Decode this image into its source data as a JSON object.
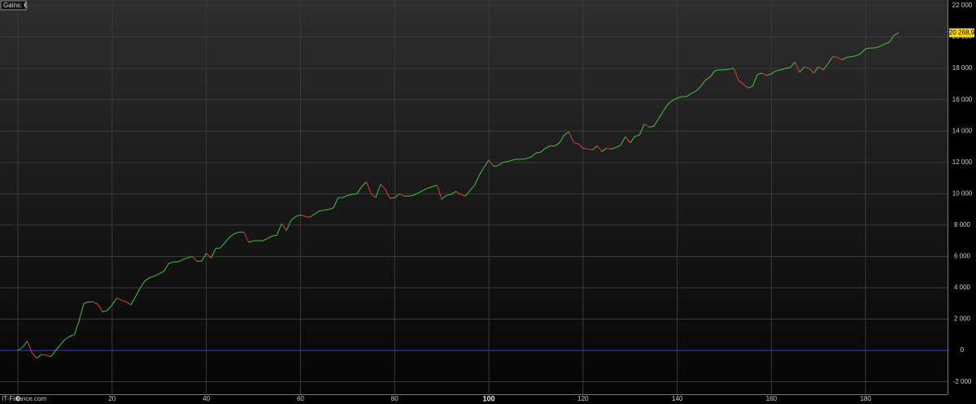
{
  "chart_data": {
    "type": "line",
    "title": "Gains: €",
    "footer": "IT-Finance.com",
    "x": [
      0,
      1,
      2,
      3,
      4,
      5,
      6,
      7,
      8,
      9,
      10,
      11,
      12,
      13,
      14,
      15,
      16,
      17,
      18,
      19,
      20,
      21,
      22,
      23,
      24,
      25,
      26,
      27,
      28,
      29,
      30,
      31,
      32,
      33,
      34,
      35,
      36,
      37,
      38,
      39,
      40,
      41,
      42,
      43,
      44,
      45,
      46,
      47,
      48,
      49,
      50,
      51,
      52,
      53,
      54,
      55,
      56,
      57,
      58,
      59,
      60,
      61,
      62,
      63,
      64,
      65,
      66,
      67,
      68,
      69,
      70,
      71,
      72,
      73,
      74,
      75,
      76,
      77,
      78,
      79,
      80,
      81,
      82,
      83,
      84,
      85,
      86,
      87,
      88,
      89,
      90,
      91,
      92,
      93,
      94,
      95,
      96,
      97,
      98,
      99,
      100,
      101,
      102,
      103,
      104,
      105,
      106,
      107,
      108,
      109,
      110,
      111,
      112,
      113,
      114,
      115,
      116,
      117,
      118,
      119,
      120,
      121,
      122,
      123,
      124,
      125,
      126,
      127,
      128,
      129,
      130,
      131,
      132,
      133,
      134,
      135,
      136,
      137,
      138,
      139,
      140,
      141,
      142,
      143,
      144,
      145,
      146,
      147,
      148,
      149,
      150,
      151,
      152,
      153,
      154,
      155,
      156,
      157,
      158,
      159,
      160,
      161,
      162,
      163,
      164,
      165,
      166,
      167,
      168,
      169,
      170,
      171,
      172,
      173,
      174,
      175,
      176,
      177,
      178,
      179,
      180,
      181,
      182,
      183,
      184,
      185,
      186,
      187
    ],
    "values": [
      0,
      200,
      600,
      -150,
      -500,
      -250,
      -300,
      -400,
      0,
      350,
      700,
      900,
      1000,
      1900,
      3000,
      3100,
      3100,
      2950,
      2450,
      2550,
      2900,
      3350,
      3200,
      3100,
      2900,
      3450,
      4000,
      4450,
      4650,
      4750,
      4900,
      5050,
      5550,
      5650,
      5650,
      5800,
      5900,
      6000,
      5700,
      5700,
      6200,
      5900,
      6500,
      6550,
      6900,
      7250,
      7450,
      7550,
      7550,
      6900,
      7000,
      7000,
      7000,
      7150,
      7300,
      7350,
      8100,
      7650,
      8300,
      8550,
      8650,
      8550,
      8500,
      8700,
      8900,
      8950,
      9000,
      9100,
      9750,
      9750,
      9900,
      9950,
      10000,
      10450,
      10750,
      10000,
      9750,
      10600,
      10300,
      9700,
      9750,
      10000,
      9850,
      9850,
      9900,
      10050,
      10200,
      10350,
      10450,
      10550,
      9650,
      9900,
      9950,
      10150,
      9950,
      9850,
      10200,
      10550,
      11200,
      11700,
      12150,
      11750,
      11800,
      12000,
      12050,
      12150,
      12200,
      12200,
      12250,
      12350,
      12600,
      12650,
      12900,
      13050,
      13050,
      13250,
      13750,
      13950,
      13250,
      13200,
      12900,
      12850,
      12800,
      13050,
      12700,
      12900,
      12850,
      12950,
      13100,
      13650,
      13250,
      13650,
      13750,
      14450,
      14250,
      14300,
      14750,
      15250,
      15700,
      15950,
      16100,
      16200,
      16200,
      16400,
      16550,
      16850,
      17250,
      17450,
      17850,
      17900,
      17900,
      17950,
      18000,
      17250,
      17000,
      16750,
      16850,
      17600,
      17700,
      17550,
      17650,
      17850,
      17900,
      18000,
      18050,
      18400,
      17750,
      18100,
      18000,
      17700,
      18100,
      17900,
      18300,
      18750,
      18700,
      18550,
      18700,
      18750,
      18800,
      18950,
      19250,
      19300,
      19300,
      19400,
      19550,
      19650,
      20100,
      20268.9
    ],
    "value_labels": [
      null,
      null,
      null,
      null,
      null,
      null,
      null,
      null,
      null,
      null,
      null,
      null,
      null,
      null,
      null,
      null,
      null,
      null,
      null,
      null,
      null,
      null,
      null,
      null,
      null,
      null,
      null,
      null,
      null,
      null,
      null,
      null,
      null,
      null,
      null,
      null,
      null,
      null,
      null,
      null,
      null,
      null,
      null,
      null,
      null,
      null,
      null,
      null,
      null,
      null,
      null,
      null,
      null,
      null,
      null,
      null,
      null,
      null,
      null,
      null,
      null,
      null,
      null,
      null,
      null,
      null,
      null,
      null,
      null,
      null,
      null,
      null,
      null,
      null,
      null,
      null,
      null,
      null,
      null,
      null,
      null,
      null,
      null,
      null,
      null,
      null,
      null,
      null,
      null,
      null,
      null,
      null,
      null,
      null,
      null,
      null,
      null,
      null,
      null,
      null,
      null,
      null,
      null,
      null,
      null,
      null,
      null,
      null,
      null,
      null,
      null,
      null,
      null,
      null,
      null,
      null,
      null,
      null,
      null,
      null,
      null,
      null,
      null,
      null,
      null,
      null,
      null,
      null,
      null,
      null,
      null,
      null,
      null,
      null,
      null,
      null,
      null,
      null,
      null,
      null,
      null,
      null,
      null,
      null,
      null,
      null,
      null,
      null,
      null,
      null,
      null,
      null,
      null,
      null,
      null,
      null,
      null,
      null,
      null,
      null,
      null,
      null,
      null,
      null,
      null,
      null,
      null,
      null,
      null,
      null,
      null,
      null,
      null,
      null,
      null,
      null,
      null,
      null,
      null,
      null,
      null,
      null,
      null,
      null,
      null,
      null,
      null,
      "20 268,9"
    ],
    "up_color": "#3fc63f",
    "down_color": "#e03c3c",
    "hline": {
      "value": 0,
      "color": "#2a2aff"
    },
    "xlim": [
      -3.8,
      197.4
    ],
    "ylim": [
      -2795,
      22362
    ],
    "xticks": [
      0,
      20,
      40,
      60,
      80,
      100,
      120,
      140,
      160,
      180
    ],
    "yticks": [
      {
        "value": -2000,
        "label": "-2 000"
      },
      0,
      {
        "value": 2000,
        "label": "2 000"
      },
      {
        "value": 4000,
        "label": "4 000"
      },
      {
        "value": 6000,
        "label": "6 000"
      },
      {
        "value": 8000,
        "label": "8 000"
      },
      {
        "value": 10000,
        "label": "10 000"
      },
      {
        "value": 12000,
        "label": "12 000"
      },
      {
        "value": 14000,
        "label": "14 000"
      },
      {
        "value": 16000,
        "label": "16 000"
      },
      {
        "value": 18000,
        "label": "18 000"
      },
      {
        "value": 20000,
        "label": "20 000"
      },
      {
        "value": 22000,
        "label": "22 000"
      }
    ],
    "grid": true
  }
}
